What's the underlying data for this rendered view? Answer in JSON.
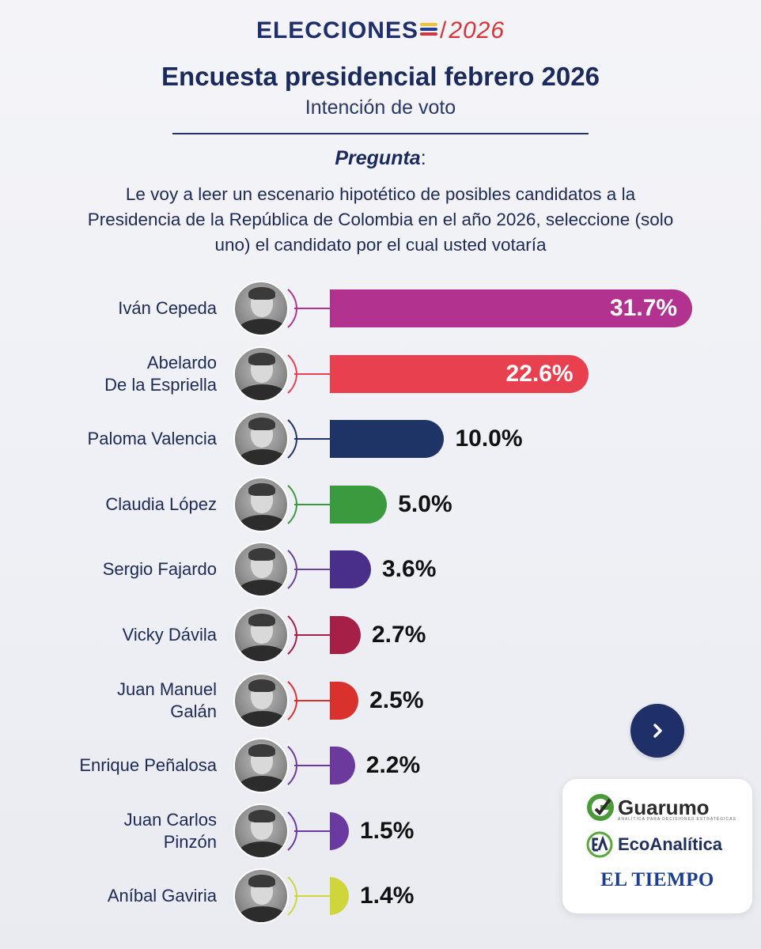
{
  "header": {
    "brand_word": "ELECCIONES",
    "brand_slash": "/",
    "brand_year": "2026",
    "title": "Encuesta presidencial febrero 2026",
    "subtitle": "Intención de voto"
  },
  "question": {
    "label": "Pregunta",
    "colon": ":",
    "text": "Le voy a leer un escenario hipotético de posibles candidatos a la Presidencia de la República de Colombia en el año 2026, seleccione (solo uno) el candidato por el cual usted votaría"
  },
  "chart_data": {
    "type": "bar",
    "orientation": "horizontal",
    "title": "Encuesta presidencial febrero 2026",
    "subtitle": "Intención de voto",
    "unit": "%",
    "categories": [
      "Iván Cepeda",
      "Abelardo De la Espriella",
      "Paloma Valencia",
      "Claudia López",
      "Sergio Fajardo",
      "Vicky Dávila",
      "Juan Manuel Galán",
      "Enrique Peñalosa",
      "Juan Carlos Pinzón",
      "Aníbal Gaviria"
    ],
    "values": [
      31.7,
      22.6,
      10.0,
      5.0,
      3.6,
      2.7,
      2.5,
      2.2,
      1.5,
      1.4
    ],
    "xlim": [
      0,
      31.7
    ],
    "bars": [
      {
        "name_lines": [
          "Iván Cepeda"
        ],
        "value": 31.7,
        "label": "31.7%",
        "color": "#b2338f",
        "arc_color": "#b2338f"
      },
      {
        "name_lines": [
          "Abelardo",
          "De la Espriella"
        ],
        "value": 22.6,
        "label": "22.6%",
        "color": "#e8404e",
        "arc_color": "#e8404e"
      },
      {
        "name_lines": [
          "Paloma Valencia"
        ],
        "value": 10.0,
        "label": "10.0%",
        "color": "#1e3366",
        "arc_color": "#1e3366"
      },
      {
        "name_lines": [
          "Claudia López"
        ],
        "value": 5.0,
        "label": "5.0%",
        "color": "#3a9a3e",
        "arc_color": "#3a9a3e"
      },
      {
        "name_lines": [
          "Sergio Fajardo"
        ],
        "value": 3.6,
        "label": "3.6%",
        "color": "#4a2f8a",
        "arc_color": "#6a3fa0"
      },
      {
        "name_lines": [
          "Vicky Dávila"
        ],
        "value": 2.7,
        "label": "2.7%",
        "color": "#a51f46",
        "arc_color": "#a51f46"
      },
      {
        "name_lines": [
          "Juan Manuel",
          "Galán"
        ],
        "value": 2.5,
        "label": "2.5%",
        "color": "#d9312b",
        "arc_color": "#d9312b"
      },
      {
        "name_lines": [
          "Enrique Peñalosa"
        ],
        "value": 2.2,
        "label": "2.2%",
        "color": "#6b3a9c",
        "arc_color": "#6b3a9c"
      },
      {
        "name_lines": [
          "Juan Carlos",
          "Pinzón"
        ],
        "value": 1.5,
        "label": "1.5%",
        "color": "#6a3aa0",
        "arc_color": "#6a3aa0"
      },
      {
        "name_lines": [
          "Aníbal Gaviria"
        ],
        "value": 1.4,
        "label": "1.4%",
        "color": "#cfd63a",
        "arc_color": "#cfd63a"
      }
    ]
  },
  "navigation": {
    "next_icon": "chevron-right-icon"
  },
  "logos": {
    "guarumo": "Guarumo",
    "guarumo_tagline": "ANALÍTICA PARA DECISIONES ESTRATÉGICAS",
    "ecoanalitica": "EcoAnalítica",
    "eltiempo": "EL TIEMPO"
  },
  "colors": {
    "navy": "#1e2f6b",
    "accent_red": "#d9333a",
    "flag_yellow": "#f2c230",
    "flag_blue": "#1e3f9a"
  }
}
